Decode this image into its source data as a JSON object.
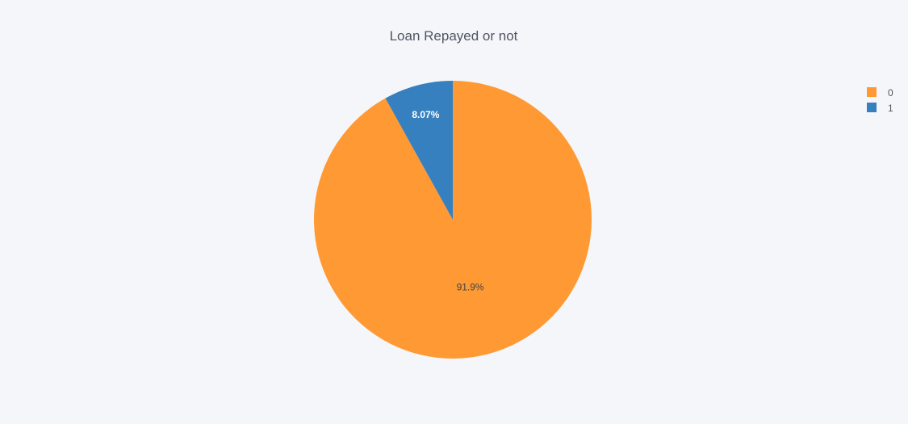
{
  "chart_data": {
    "type": "pie",
    "title": "Loan Repayed or not",
    "labels": [
      "0",
      "1"
    ],
    "values": [
      91.93,
      8.07
    ],
    "slice_text": [
      "91.9%",
      "8.07%"
    ],
    "colors": [
      "#ff9933",
      "#3780bf"
    ],
    "legend_placement": "top-right",
    "direction": "clockwise",
    "start": "top"
  }
}
